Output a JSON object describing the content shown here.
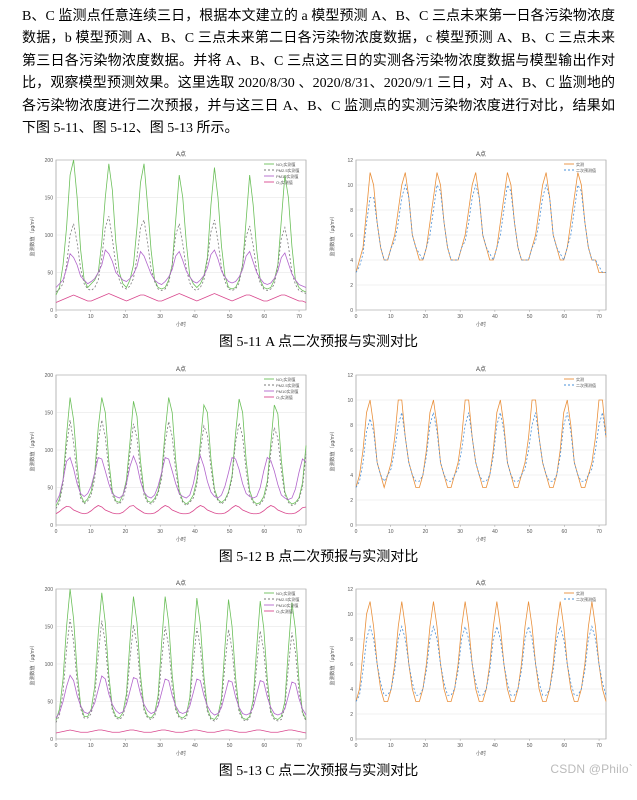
{
  "paragraph": "B、C 监测点任意连续三日，根据本文建立的 a 模型预测 A、B、C 三点未来第一日各污染物浓度数据，b 模型预测 A、B、C 三点未来第二日各污染物浓度数据，c 模型预测 A、B、C 三点未来第三日各污染物浓度数据。并将 A、B、C 三点这三日的实测各污染物浓度数据与模型输出作对比，观察模型预测效果。这里选取 2020/8/30 、2020/8/31、2020/9/1 三日，对 A、B、C 监测地的各污染物浓度进行二次预报，并与这三日 A、B、C 监测点的实测污染物浓度进行对比，结果如下图 5-11、图 5-12、图 5-13 所示。",
  "captions": {
    "c1": "图  5-11 A 点二次预报与实测对比",
    "c2": "图  5-12 B 点二次预报与实测对比",
    "c3": "图  5-13 C 点二次预报与实测对比"
  },
  "watermark": "CSDN @Philo`",
  "charts": {
    "axis": {
      "stroke": "#888",
      "grid_stroke": "#d9d9d9",
      "xlim": [
        0,
        72
      ],
      "xtick_step": 10,
      "tick_label_fontsize": 5,
      "title_fontsize": 6,
      "legend_fontsize": 4
    },
    "left": {
      "title": "A点",
      "ylim": [
        0,
        200
      ],
      "ytick_step": 50,
      "legend_items": [
        "NO₂实测值",
        "PM2.5实测值",
        "PM10实测值",
        "O₃实测值",
        "CO实测值"
      ],
      "colors": {
        "green": "#6bbf59",
        "purple": "#b266cc",
        "magenta": "#d9488e",
        "grey": "#7a7a7a",
        "dashed": "#8a8a8a"
      }
    },
    "right": {
      "title": "A点",
      "ylim": [
        0,
        12
      ],
      "ytick_step": 2,
      "legend_items": [
        "实测",
        "二次预测值"
      ],
      "colors": {
        "orange": "#e98f3a",
        "blue": "#4a90d9"
      }
    },
    "A_left": {
      "green": [
        20,
        30,
        60,
        110,
        180,
        200,
        150,
        80,
        40,
        30,
        35,
        40,
        50,
        90,
        150,
        195,
        160,
        90,
        50,
        35,
        30,
        40,
        60,
        110,
        170,
        195,
        140,
        80,
        40,
        30,
        28,
        30,
        40,
        60,
        120,
        180,
        150,
        90,
        45,
        35,
        30,
        35,
        45,
        70,
        140,
        190,
        150,
        85,
        45,
        30,
        28,
        30,
        40,
        60,
        120,
        180,
        140,
        80,
        40,
        30,
        28,
        30,
        40,
        60,
        120,
        180,
        150,
        85,
        40,
        30,
        26,
        24
      ],
      "purple": [
        30,
        35,
        40,
        55,
        75,
        70,
        60,
        45,
        40,
        35,
        38,
        42,
        50,
        60,
        80,
        75,
        65,
        50,
        45,
        40,
        38,
        42,
        48,
        58,
        78,
        72,
        60,
        48,
        40,
        36,
        34,
        38,
        44,
        54,
        72,
        78,
        66,
        52,
        44,
        38,
        36,
        40,
        46,
        56,
        74,
        80,
        68,
        52,
        44,
        38,
        36,
        38,
        44,
        54,
        72,
        78,
        64,
        50,
        42,
        36,
        34,
        36,
        42,
        52,
        70,
        76,
        62,
        48,
        40,
        34,
        32,
        30
      ],
      "magenta": [
        10,
        12,
        14,
        16,
        18,
        20,
        18,
        16,
        14,
        12,
        12,
        14,
        16,
        18,
        20,
        22,
        20,
        18,
        16,
        14,
        12,
        14,
        16,
        18,
        20,
        20,
        18,
        16,
        14,
        12,
        12,
        14,
        16,
        18,
        20,
        22,
        20,
        18,
        16,
        14,
        12,
        14,
        16,
        18,
        20,
        22,
        20,
        18,
        16,
        14,
        12,
        14,
        16,
        18,
        20,
        20,
        18,
        16,
        14,
        12,
        12,
        14,
        16,
        18,
        20,
        20,
        18,
        16,
        14,
        12,
        12,
        10
      ],
      "grey": [
        24,
        28,
        35,
        60,
        100,
        115,
        90,
        55,
        35,
        28,
        26,
        30,
        40,
        70,
        110,
        125,
        95,
        60,
        40,
        30,
        28,
        32,
        42,
        70,
        110,
        120,
        90,
        55,
        38,
        28,
        26,
        28,
        36,
        60,
        100,
        115,
        88,
        55,
        36,
        28,
        26,
        30,
        40,
        66,
        104,
        120,
        92,
        56,
        38,
        28,
        26,
        28,
        36,
        60,
        98,
        112,
        86,
        52,
        36,
        28,
        26,
        28,
        34,
        58,
        96,
        110,
        86,
        50,
        34,
        26,
        24,
        22
      ]
    },
    "A_right": {
      "orange": [
        3,
        4,
        5,
        8,
        11,
        10,
        7,
        5,
        4,
        4,
        5,
        6,
        8,
        10,
        11,
        9,
        6,
        5,
        4,
        4,
        5,
        7,
        9,
        11,
        10,
        7,
        5,
        4,
        4,
        4,
        5,
        6,
        8,
        10,
        11,
        9,
        6,
        5,
        4,
        4,
        5,
        7,
        9,
        11,
        10,
        7,
        5,
        4,
        4,
        4,
        5,
        6,
        8,
        10,
        11,
        9,
        6,
        5,
        4,
        4,
        5,
        7,
        9,
        11,
        10,
        7,
        5,
        4,
        4,
        3,
        3,
        3
      ],
      "blue": [
        3,
        3.5,
        4.5,
        7,
        9,
        9,
        7,
        5,
        4,
        4,
        5,
        5.5,
        7,
        9,
        10,
        9,
        6,
        5,
        4.5,
        4,
        5,
        6,
        8,
        10,
        9.5,
        7,
        5,
        4,
        4,
        4,
        5,
        5.5,
        7,
        9,
        10,
        9,
        6,
        5,
        4.5,
        4,
        5,
        6,
        8,
        10,
        9.5,
        7,
        5,
        4,
        4,
        4,
        5,
        5.5,
        7,
        9,
        10,
        9,
        6,
        5,
        4.5,
        4,
        5,
        6,
        8,
        10,
        9.5,
        7,
        5,
        4,
        4,
        3.5,
        3,
        3
      ]
    },
    "B_left": {
      "green": [
        25,
        35,
        60,
        120,
        170,
        140,
        80,
        40,
        30,
        35,
        45,
        70,
        130,
        170,
        150,
        85,
        45,
        32,
        30,
        40,
        60,
        110,
        165,
        145,
        85,
        45,
        32,
        30,
        35,
        45,
        68,
        125,
        170,
        150,
        86,
        46,
        32,
        28,
        32,
        40,
        60,
        110,
        160,
        150,
        88,
        48,
        34,
        30,
        34,
        44,
        66,
        122,
        168,
        150,
        86,
        46,
        32,
        28,
        30,
        38,
        58,
        108,
        160,
        148,
        86,
        44,
        32,
        28,
        30,
        36,
        56,
        106
      ],
      "purple": [
        30,
        40,
        60,
        85,
        90,
        75,
        55,
        42,
        38,
        42,
        52,
        70,
        90,
        88,
        72,
        55,
        42,
        38,
        36,
        40,
        55,
        78,
        92,
        80,
        58,
        44,
        38,
        36,
        40,
        52,
        70,
        90,
        88,
        72,
        55,
        42,
        38,
        36,
        40,
        55,
        78,
        92,
        78,
        58,
        44,
        38,
        36,
        40,
        52,
        70,
        90,
        88,
        74,
        55,
        42,
        38,
        36,
        38,
        50,
        72,
        90,
        86,
        72,
        54,
        40,
        36,
        34,
        36,
        48,
        70,
        88,
        84
      ],
      "magenta": [
        15,
        18,
        22,
        25,
        24,
        20,
        18,
        16,
        15,
        16,
        19,
        23,
        26,
        24,
        20,
        18,
        16,
        15,
        15,
        17,
        21,
        25,
        26,
        22,
        19,
        16,
        15,
        15,
        16,
        19,
        23,
        26,
        24,
        20,
        18,
        16,
        15,
        15,
        16,
        19,
        23,
        26,
        24,
        20,
        18,
        16,
        15,
        15,
        16,
        19,
        23,
        26,
        24,
        20,
        18,
        16,
        15,
        15,
        16,
        19,
        23,
        26,
        24,
        20,
        18,
        16,
        15,
        15,
        16,
        19,
        23,
        24
      ],
      "grey": [
        22,
        30,
        55,
        105,
        140,
        110,
        65,
        36,
        28,
        32,
        40,
        62,
        112,
        140,
        118,
        72,
        40,
        30,
        28,
        34,
        52,
        96,
        135,
        116,
        72,
        40,
        30,
        28,
        32,
        42,
        62,
        110,
        138,
        118,
        72,
        42,
        30,
        26,
        30,
        36,
        54,
        98,
        132,
        120,
        76,
        44,
        32,
        28,
        32,
        42,
        62,
        110,
        136,
        118,
        72,
        40,
        30,
        26,
        28,
        34,
        52,
        96,
        130,
        116,
        72,
        40,
        30,
        26,
        28,
        34,
        50,
        94
      ]
    },
    "B_right": {
      "orange": [
        3,
        4,
        6,
        9,
        10,
        8,
        5,
        4,
        3,
        4,
        5,
        7,
        10,
        10,
        7,
        5,
        4,
        3,
        3,
        4,
        6,
        9,
        10,
        8,
        5,
        4,
        3,
        3,
        4,
        5,
        7,
        10,
        10,
        7,
        5,
        4,
        3,
        3,
        4,
        6,
        9,
        10,
        8,
        5,
        4,
        3,
        3,
        4,
        5,
        7,
        10,
        10,
        7,
        5,
        4,
        3,
        3,
        4,
        6,
        9,
        10,
        8,
        5,
        4,
        3,
        3,
        4,
        5,
        7,
        10,
        10,
        7
      ],
      "blue": [
        3,
        3.5,
        5,
        7.5,
        8.5,
        7.5,
        5,
        4,
        3.5,
        4,
        4.5,
        6,
        8,
        9,
        7,
        5,
        4,
        3.5,
        3.5,
        4,
        5.5,
        8,
        9,
        7.5,
        5,
        4,
        3.5,
        3.5,
        4,
        4.5,
        6,
        8,
        9,
        7,
        5,
        4,
        3.5,
        3.5,
        4,
        5.5,
        8,
        9,
        7.5,
        5,
        4,
        3.5,
        3.5,
        4,
        4.5,
        6,
        8,
        9,
        7,
        5,
        4,
        3.5,
        3.5,
        4,
        5.5,
        8,
        9,
        7.5,
        5,
        4,
        3.5,
        3.5,
        4,
        4.5,
        6,
        8,
        9,
        7
      ]
    },
    "C_left": {
      "green": [
        25,
        40,
        80,
        150,
        200,
        160,
        90,
        45,
        30,
        30,
        40,
        70,
        140,
        195,
        155,
        85,
        42,
        30,
        28,
        35,
        60,
        130,
        190,
        155,
        85,
        42,
        30,
        28,
        34,
        58,
        128,
        190,
        155,
        85,
        42,
        30,
        28,
        32,
        55,
        126,
        188,
        152,
        84,
        40,
        28,
        26,
        32,
        54,
        124,
        186,
        150,
        82,
        40,
        28,
        26,
        30,
        52,
        122,
        184,
        148,
        80,
        38,
        28,
        26,
        30,
        50,
        120,
        182,
        146,
        78,
        36,
        26
      ],
      "purple": [
        28,
        35,
        50,
        70,
        85,
        78,
        58,
        44,
        36,
        34,
        38,
        48,
        66,
        84,
        80,
        60,
        46,
        38,
        34,
        36,
        46,
        64,
        82,
        80,
        60,
        46,
        38,
        34,
        36,
        44,
        62,
        80,
        78,
        58,
        44,
        36,
        34,
        36,
        44,
        62,
        80,
        78,
        58,
        44,
        36,
        32,
        34,
        42,
        60,
        78,
        76,
        56,
        42,
        34,
        32,
        34,
        42,
        60,
        78,
        76,
        56,
        42,
        34,
        32,
        34,
        40,
        58,
        76,
        74,
        54,
        40,
        32
      ],
      "magenta": [
        8,
        9,
        10,
        11,
        12,
        11,
        10,
        9,
        9,
        9,
        10,
        11,
        12,
        12,
        11,
        10,
        9,
        9,
        9,
        10,
        11,
        12,
        12,
        11,
        10,
        9,
        9,
        9,
        10,
        11,
        12,
        12,
        11,
        10,
        9,
        9,
        9,
        10,
        11,
        12,
        12,
        11,
        10,
        9,
        9,
        9,
        10,
        11,
        12,
        12,
        11,
        10,
        9,
        9,
        9,
        10,
        11,
        12,
        12,
        11,
        10,
        9,
        9,
        9,
        10,
        11,
        12,
        12,
        11,
        10,
        9,
        8
      ],
      "grey": [
        22,
        32,
        62,
        120,
        160,
        130,
        75,
        40,
        28,
        28,
        34,
        56,
        112,
        158,
        128,
        72,
        38,
        28,
        26,
        30,
        50,
        106,
        152,
        126,
        72,
        38,
        28,
        26,
        30,
        48,
        104,
        150,
        124,
        70,
        38,
        28,
        26,
        28,
        46,
        102,
        148,
        122,
        70,
        36,
        26,
        24,
        28,
        46,
        100,
        146,
        120,
        68,
        36,
        26,
        24,
        28,
        44,
        98,
        144,
        118,
        66,
        34,
        26,
        24,
        26,
        42,
        96,
        142,
        116,
        64,
        34,
        24
      ]
    },
    "C_right": {
      "orange": [
        3,
        4,
        7,
        10,
        11,
        9,
        6,
        4,
        3,
        3,
        4,
        6,
        9,
        11,
        9,
        6,
        4,
        3,
        3,
        4,
        6,
        9,
        11,
        9,
        6,
        4,
        3,
        3,
        4,
        6,
        9,
        11,
        9,
        6,
        4,
        3,
        3,
        4,
        6,
        9,
        11,
        9,
        6,
        4,
        3,
        3,
        4,
        6,
        9,
        11,
        9,
        6,
        4,
        3,
        3,
        4,
        6,
        9,
        11,
        9,
        6,
        4,
        3,
        3,
        4,
        6,
        9,
        11,
        9,
        6,
        4,
        3
      ],
      "blue": [
        3,
        3.5,
        5.5,
        8,
        9,
        8,
        6,
        4.5,
        3.5,
        3.5,
        4,
        5.5,
        8,
        9,
        8,
        6,
        4.5,
        3.5,
        3.5,
        4,
        5.5,
        8,
        9,
        8,
        6,
        4.5,
        3.5,
        3.5,
        4,
        5.5,
        8,
        9,
        8,
        6,
        4.5,
        3.5,
        3.5,
        4,
        5.5,
        8,
        9,
        8,
        6,
        4.5,
        3.5,
        3.5,
        4,
        5.5,
        8,
        9,
        8,
        6,
        4.5,
        3.5,
        3.5,
        4,
        5.5,
        8,
        9,
        8,
        6,
        4.5,
        3.5,
        3.5,
        4,
        5.5,
        8,
        9,
        8,
        6,
        4.5,
        3.5
      ]
    }
  }
}
